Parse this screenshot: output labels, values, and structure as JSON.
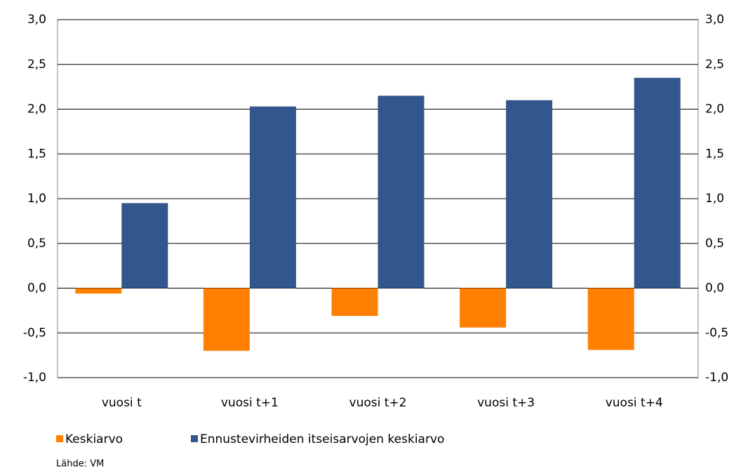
{
  "chart_data": {
    "type": "bar",
    "categories": [
      "vuosi t",
      "vuosi t+1",
      "vuosi t+2",
      "vuosi t+3",
      "vuosi t+4"
    ],
    "series": [
      {
        "name": "Keskiarvo",
        "color": "#ff8000",
        "values": [
          -0.06,
          -0.7,
          -0.31,
          -0.44,
          -0.69
        ]
      },
      {
        "name": "Ennustevirheiden itseisarvojen keskiarvo",
        "color": "#33568c",
        "values": [
          0.95,
          2.03,
          2.15,
          2.1,
          2.35
        ]
      }
    ],
    "ylim": [
      -1,
      3
    ],
    "yticks": [
      {
        "value": -1,
        "label": "-1,0"
      },
      {
        "value": -0.5,
        "label": "-0,5"
      },
      {
        "value": 0,
        "label": "0,0"
      },
      {
        "value": 0.5,
        "label": "0,5"
      },
      {
        "value": 1,
        "label": "1,0"
      },
      {
        "value": 1.5,
        "label": "1,5"
      },
      {
        "value": 2,
        "label": "2,0"
      },
      {
        "value": 2.5,
        "label": "2,5"
      },
      {
        "value": 3,
        "label": "3,0"
      }
    ],
    "y2lim": [
      -1,
      3
    ],
    "y2ticks": [
      {
        "value": -1,
        "label": "-1,0"
      },
      {
        "value": -0.5,
        "label": "-0,5"
      },
      {
        "value": 0,
        "label": "0,0"
      },
      {
        "value": 0.5,
        "label": "0,5"
      },
      {
        "value": 1,
        "label": "1,0"
      },
      {
        "value": 1.5,
        "label": "1,5"
      },
      {
        "value": 2,
        "label": "2,0"
      },
      {
        "value": 2.5,
        "label": "2,5"
      },
      {
        "value": 3,
        "label": "3,0"
      }
    ],
    "grid": true,
    "legend": "bottom",
    "source": "Lähde: VM"
  }
}
